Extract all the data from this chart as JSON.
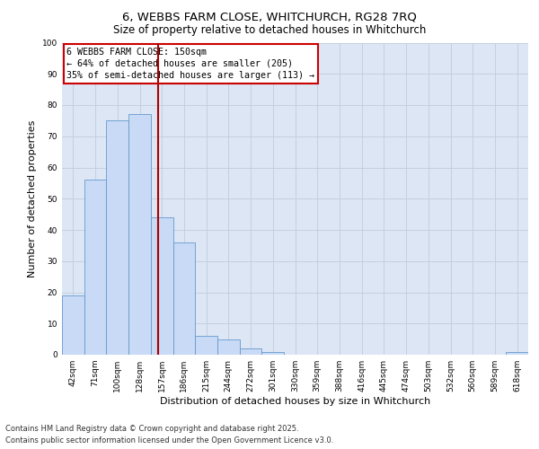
{
  "title_line1": "6, WEBBS FARM CLOSE, WHITCHURCH, RG28 7RQ",
  "title_line2": "Size of property relative to detached houses in Whitchurch",
  "xlabel": "Distribution of detached houses by size in Whitchurch",
  "ylabel": "Number of detached properties",
  "categories": [
    "42sqm",
    "71sqm",
    "100sqm",
    "128sqm",
    "157sqm",
    "186sqm",
    "215sqm",
    "244sqm",
    "272sqm",
    "301sqm",
    "330sqm",
    "359sqm",
    "388sqm",
    "416sqm",
    "445sqm",
    "474sqm",
    "503sqm",
    "532sqm",
    "560sqm",
    "589sqm",
    "618sqm"
  ],
  "values": [
    19,
    56,
    75,
    77,
    44,
    36,
    6,
    5,
    2,
    1,
    0,
    0,
    0,
    0,
    0,
    0,
    0,
    0,
    0,
    0,
    1
  ],
  "bar_color": "#c8daf5",
  "bar_edge_color": "#6699cc",
  "red_line_x": 3.82,
  "annotation_text_line1": "6 WEBBS FARM CLOSE: 150sqm",
  "annotation_text_line2": "← 64% of detached houses are smaller (205)",
  "annotation_text_line3": "35% of semi-detached houses are larger (113) →",
  "annotation_box_color": "#ffffff",
  "annotation_box_edge": "#cc0000",
  "red_line_color": "#aa0000",
  "ylim": [
    0,
    100
  ],
  "yticks": [
    0,
    10,
    20,
    30,
    40,
    50,
    60,
    70,
    80,
    90,
    100
  ],
  "grid_color": "#c0ccdd",
  "bg_color": "#dce6f5",
  "footer_line1": "Contains HM Land Registry data © Crown copyright and database right 2025.",
  "footer_line2": "Contains public sector information licensed under the Open Government Licence v3.0.",
  "title_fontsize": 9.5,
  "subtitle_fontsize": 8.5,
  "tick_fontsize": 6.5,
  "label_fontsize": 8,
  "annot_fontsize": 7.2
}
